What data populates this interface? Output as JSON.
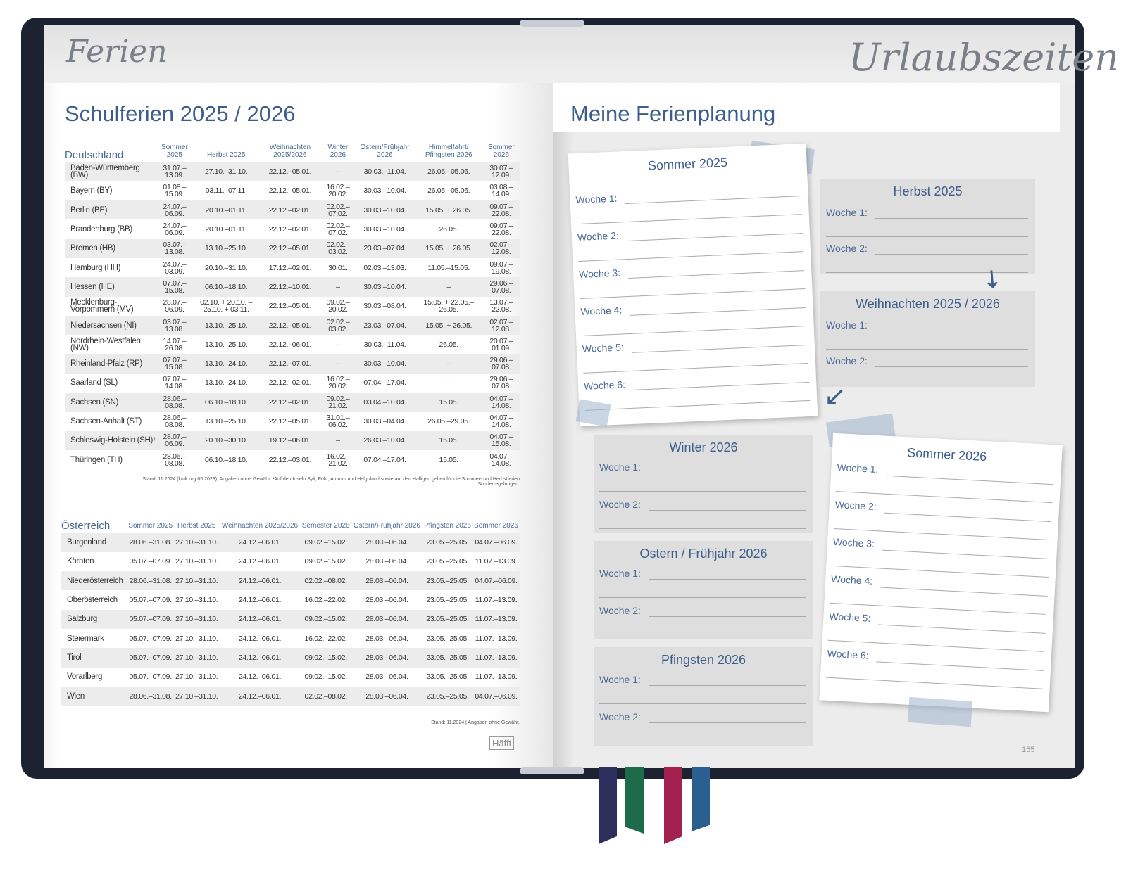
{
  "left_page": {
    "script_title": "Ferien",
    "title": "Schulferien 2025 / 2026",
    "germany": {
      "headers": [
        "Deutschland",
        "Sommer 2025",
        "Herbst 2025",
        "Weihnachten 2025/2026",
        "Winter 2026",
        "Ostern/Frühjahr 2026",
        "Himmelfahrt/ Pfingsten 2026",
        "Sommer 2026"
      ],
      "rows": [
        [
          "Baden-Württemberg (BW)",
          "31.07.–13.09.",
          "27.10.–31.10.",
          "22.12.–05.01.",
          "–",
          "30.03.–11.04.",
          "26.05.–05.06.",
          "30.07.–12.09."
        ],
        [
          "Bayern (BY)",
          "01.08.–15.09.",
          "03.11.–07.11.",
          "22.12.–05.01.",
          "16.02.–20.02.",
          "30.03.–10.04.",
          "26.05.–05.06.",
          "03.08.–14.09."
        ],
        [
          "Berlin (BE)",
          "24.07.–06.09.",
          "20.10.–01.11.",
          "22.12.–02.01.",
          "02.02.–07.02.",
          "30.03.–10.04.",
          "15.05. + 26.05.",
          "09.07.–22.08."
        ],
        [
          "Brandenburg (BB)",
          "24.07.–06.09.",
          "20.10.–01.11.",
          "22.12.–02.01.",
          "02.02.–07.02.",
          "30.03.–10.04.",
          "26.05.",
          "09.07.–22.08."
        ],
        [
          "Bremen (HB)",
          "03.07.–13.08.",
          "13.10.–25.10.",
          "22.12.–05.01.",
          "02.02.–03.02.",
          "23.03.–07.04.",
          "15.05. + 26.05.",
          "02.07.–12.08."
        ],
        [
          "Hamburg (HH)",
          "24.07.–03.09.",
          "20.10.–31.10.",
          "17.12.–02.01.",
          "30.01.",
          "02.03.–13.03.",
          "11.05.–15.05.",
          "09.07.–19.08."
        ],
        [
          "Hessen (HE)",
          "07.07.–15.08.",
          "06.10.–18.10.",
          "22.12.–10.01.",
          "–",
          "30.03.–10.04.",
          "–",
          "29.06.–07.08."
        ],
        [
          "Mecklenburg-Vorpommern (MV)",
          "28.07.–06.09.",
          "02.10. + 20.10. –25.10. + 03.11.",
          "22.12.–05.01.",
          "09.02.–20.02.",
          "30.03.–08.04.",
          "15.05. + 22.05.–26.05.",
          "13.07.–22.08."
        ],
        [
          "Niedersachsen (NI)",
          "03.07.–13.08.",
          "13.10.–25.10.",
          "22.12.–05.01.",
          "02.02.–03.02.",
          "23.03.–07.04.",
          "15.05. + 26.05.",
          "02.07.–12.08."
        ],
        [
          "Nordrhein-Westfalen (NW)",
          "14.07.–26.08.",
          "13.10.–25.10.",
          "22.12.–06.01.",
          "–",
          "30.03.–11.04.",
          "26.05.",
          "20.07.–01.09."
        ],
        [
          "Rheinland-Pfalz (RP)",
          "07.07.–15.08.",
          "13.10.–24.10.",
          "22.12.–07.01.",
          "–",
          "30.03.–10.04.",
          "–",
          "29.06.–07.08."
        ],
        [
          "Saarland (SL)",
          "07.07.–14.08.",
          "13.10.–24.10.",
          "22.12.–02.01.",
          "16.02.–20.02.",
          "07.04.–17.04.",
          "–",
          "29.06.–07.08."
        ],
        [
          "Sachsen (SN)",
          "28.06.–08.08.",
          "06.10.–18.10.",
          "22.12.–02.01.",
          "09.02.–21.02.",
          "03.04.–10.04.",
          "15.05.",
          "04.07.–14.08."
        ],
        [
          "Sachsen-Anhalt (ST)",
          "28.06.–08.08.",
          "13.10.–25.10.",
          "22.12.–05.01.",
          "31.01.–06.02.",
          "30.03.–04.04.",
          "26.05.–29.05.",
          "04.07.–14.08."
        ],
        [
          "Schleswig-Holstein (SH)¹",
          "28.07.–06.09.",
          "20.10.–30.10.",
          "19.12.–06.01.",
          "–",
          "26.03.–10.04.",
          "15.05.",
          "04.07.–15.08."
        ],
        [
          "Thüringen (TH)",
          "28.06.–08.08.",
          "06.10.–18.10.",
          "22.12.–03.01.",
          "16.02.–21.02.",
          "07.04.–17.04.",
          "15.05.",
          "04.07.–14.08."
        ]
      ],
      "footnote": "Stand: 11.2024 (kmk.org 05.2023); Angaben ohne Gewähr. ¹Auf den Inseln Sylt, Föhr, Amrum und Helgoland sowie auf den Halligen gelten für die Sommer- und Herbstferien Sonderregelungen."
    },
    "austria": {
      "headers": [
        "Österreich",
        "Sommer 2025",
        "Herbst 2025",
        "Weihnachten 2025/2026",
        "Semester 2026",
        "Ostern/Frühjahr 2026",
        "Pfingsten 2026",
        "Sommer 2026"
      ],
      "rows": [
        [
          "Burgenland",
          "28.06.–31.08.",
          "27.10.–31.10.",
          "24.12.–06.01.",
          "09.02.–15.02.",
          "28.03.–06.04.",
          "23.05.–25.05.",
          "04.07.–06.09."
        ],
        [
          "Kärnten",
          "05.07.–07.09.",
          "27.10.–31.10.",
          "24.12.–06.01.",
          "09.02.–15.02.",
          "28.03.–06.04.",
          "23.05.–25.05.",
          "11.07.–13.09."
        ],
        [
          "Niederösterreich",
          "28.06.–31.08.",
          "27.10.–31.10.",
          "24.12.–06.01.",
          "02.02.–08.02.",
          "28.03.–06.04.",
          "23.05.–25.05.",
          "04.07.–06.09."
        ],
        [
          "Oberösterreich",
          "05.07.–07.09.",
          "27.10.–31.10.",
          "24.12.–06.01.",
          "16.02.–22.02.",
          "28.03.–06.04.",
          "23.05.–25.05.",
          "11.07.–13.09."
        ],
        [
          "Salzburg",
          "05.07.–07.09.",
          "27.10.–31.10.",
          "24.12.–06.01.",
          "09.02.–15.02.",
          "28.03.–06.04.",
          "23.05.–25.05.",
          "11.07.–13.09."
        ],
        [
          "Steiermark",
          "05.07.–07.09.",
          "27.10.–31.10.",
          "24.12.–06.01.",
          "16.02.–22.02.",
          "28.03.–06.04.",
          "23.05.–25.05.",
          "11.07.–13.09."
        ],
        [
          "Tirol",
          "05.07.–07.09.",
          "27.10.–31.10.",
          "24.12.–06.01.",
          "09.02.–15.02.",
          "28.03.–06.04.",
          "23.05.–25.05.",
          "11.07.–13.09."
        ],
        [
          "Vorarlberg",
          "05.07.–07.09.",
          "27.10.–31.10.",
          "24.12.–06.01.",
          "09.02.–15.02.",
          "28.03.–06.04.",
          "23.05.–25.05.",
          "11.07.–13.09."
        ],
        [
          "Wien",
          "28.06.–31.08.",
          "27.10.–31.10.",
          "24.12.–06.01.",
          "02.02.–08.02.",
          "28.03.–06.04.",
          "23.05.–25.05.",
          "04.07.–06.09."
        ]
      ],
      "footnote": "Stand: 11.2024 | Angaben ohne Gewähr."
    },
    "logo": "Häfft"
  },
  "right_page": {
    "script_title": "Urlaubszeiten",
    "title": "Meine Ferienplanung",
    "page_number": "155",
    "cards": {
      "sommer2025": {
        "title": "Sommer 2025",
        "weeks": [
          "Woche 1:",
          "Woche 2:",
          "Woche 3:",
          "Woche 4:",
          "Woche 5:",
          "Woche 6:"
        ]
      },
      "herbst2025": {
        "title": "Herbst 2025",
        "weeks": [
          "Woche 1:",
          "Woche 2:"
        ]
      },
      "weihnachten": {
        "title": "Weihnachten 2025 / 2026",
        "weeks": [
          "Woche 1:",
          "Woche 2:"
        ]
      },
      "winter2026": {
        "title": "Winter 2026",
        "weeks": [
          "Woche 1:",
          "Woche 2:"
        ]
      },
      "ostern2026": {
        "title": "Ostern / Frühjahr 2026",
        "weeks": [
          "Woche 1:",
          "Woche 2:"
        ]
      },
      "pfingsten2026": {
        "title": "Pfingsten 2026",
        "weeks": [
          "Woche 1:",
          "Woche 2:"
        ]
      },
      "sommer2026": {
        "title": "Sommer 2026",
        "weeks": [
          "Woche 1:",
          "Woche 2:",
          "Woche 3:",
          "Woche 4:",
          "Woche 5:",
          "Woche 6:"
        ]
      }
    }
  },
  "colors": {
    "accent": "#3b5e8c",
    "cover": "#1d2230",
    "ribbons": [
      "#2c2f5e",
      "#1d6b4a",
      "#a3204f",
      "#2b5f8f"
    ]
  }
}
